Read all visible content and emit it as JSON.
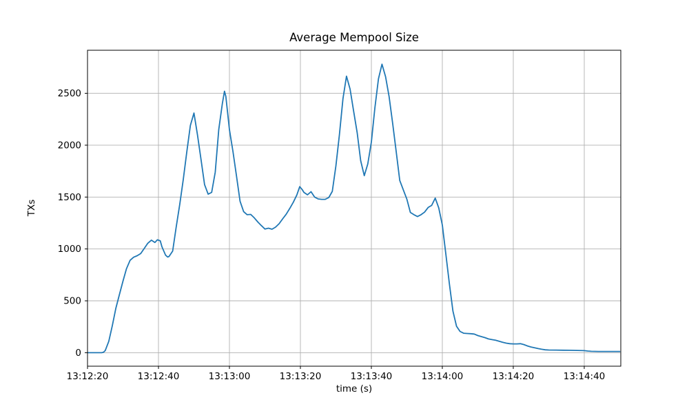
{
  "chart_data": {
    "type": "line",
    "title": "Average Mempool Size",
    "xlabel": "time (s)",
    "ylabel": "TXs",
    "grid": true,
    "legend": "none",
    "line_color": "#1f77b4",
    "grid_color": "#b0b0b0",
    "spine_color": "#000000",
    "background_color": "#ffffff",
    "x_tick_labels": [
      "13:12:20",
      "13:12:40",
      "13:13:00",
      "13:13:20",
      "13:13:40",
      "13:14:00",
      "13:14:20",
      "13:14:40"
    ],
    "x_tick_offsets_s": [
      0,
      20,
      40,
      60,
      80,
      100,
      120,
      140
    ],
    "y_ticks": [
      0,
      500,
      1000,
      1500,
      2000,
      2500
    ],
    "xlim_s": [
      0,
      150.3
    ],
    "ylim": [
      -130,
      2915
    ],
    "series": [
      {
        "name": "Average Mempool Size",
        "x_base_time": "13:12:20",
        "points": [
          [
            0,
            0
          ],
          [
            2,
            0
          ],
          [
            4,
            0
          ],
          [
            4.5,
            5
          ],
          [
            5,
            20
          ],
          [
            6,
            110
          ],
          [
            7,
            260
          ],
          [
            8,
            430
          ],
          [
            9,
            560
          ],
          [
            10,
            690
          ],
          [
            11,
            810
          ],
          [
            12,
            890
          ],
          [
            13,
            920
          ],
          [
            14,
            935
          ],
          [
            15,
            955
          ],
          [
            16,
            1005
          ],
          [
            17,
            1055
          ],
          [
            18,
            1085
          ],
          [
            19,
            1062
          ],
          [
            19.7,
            1088
          ],
          [
            20.5,
            1078
          ],
          [
            21,
            1020
          ],
          [
            22,
            940
          ],
          [
            22.6,
            922
          ],
          [
            23,
            928
          ],
          [
            24,
            980
          ],
          [
            25,
            1210
          ],
          [
            26,
            1430
          ],
          [
            27,
            1670
          ],
          [
            28,
            1940
          ],
          [
            29,
            2190
          ],
          [
            30,
            2310
          ],
          [
            31,
            2100
          ],
          [
            32,
            1860
          ],
          [
            33,
            1620
          ],
          [
            34,
            1528
          ],
          [
            35,
            1545
          ],
          [
            36,
            1740
          ],
          [
            37,
            2150
          ],
          [
            38,
            2400
          ],
          [
            38.6,
            2520
          ],
          [
            39,
            2470
          ],
          [
            40,
            2150
          ],
          [
            41,
            1940
          ],
          [
            42,
            1700
          ],
          [
            43,
            1460
          ],
          [
            44,
            1360
          ],
          [
            45,
            1330
          ],
          [
            46,
            1333
          ],
          [
            47,
            1300
          ],
          [
            48,
            1260
          ],
          [
            49,
            1225
          ],
          [
            50,
            1192
          ],
          [
            51,
            1200
          ],
          [
            52,
            1190
          ],
          [
            53,
            1210
          ],
          [
            54,
            1243
          ],
          [
            55,
            1290
          ],
          [
            56,
            1335
          ],
          [
            57,
            1390
          ],
          [
            58,
            1450
          ],
          [
            59,
            1520
          ],
          [
            59.8,
            1600
          ],
          [
            60.5,
            1572
          ],
          [
            61,
            1545
          ],
          [
            62,
            1522
          ],
          [
            63,
            1552
          ],
          [
            64,
            1500
          ],
          [
            65,
            1482
          ],
          [
            66,
            1478
          ],
          [
            67,
            1478
          ],
          [
            68,
            1495
          ],
          [
            69,
            1555
          ],
          [
            70,
            1800
          ],
          [
            71,
            2100
          ],
          [
            72,
            2450
          ],
          [
            73,
            2665
          ],
          [
            74,
            2540
          ],
          [
            75,
            2330
          ],
          [
            76,
            2120
          ],
          [
            77,
            1850
          ],
          [
            78,
            1706
          ],
          [
            79,
            1820
          ],
          [
            80,
            2030
          ],
          [
            81,
            2360
          ],
          [
            82,
            2640
          ],
          [
            83,
            2780
          ],
          [
            84,
            2660
          ],
          [
            85,
            2470
          ],
          [
            86,
            2210
          ],
          [
            87,
            1940
          ],
          [
            88,
            1660
          ],
          [
            89,
            1570
          ],
          [
            90,
            1480
          ],
          [
            91,
            1352
          ],
          [
            92,
            1330
          ],
          [
            93,
            1312
          ],
          [
            94,
            1330
          ],
          [
            95,
            1355
          ],
          [
            96,
            1400
          ],
          [
            97,
            1420
          ],
          [
            98,
            1490
          ],
          [
            99,
            1395
          ],
          [
            100,
            1230
          ],
          [
            101,
            950
          ],
          [
            102,
            660
          ],
          [
            103,
            400
          ],
          [
            104,
            255
          ],
          [
            105,
            205
          ],
          [
            106,
            188
          ],
          [
            107,
            185
          ],
          [
            108,
            183
          ],
          [
            109,
            180
          ],
          [
            110,
            165
          ],
          [
            111,
            155
          ],
          [
            112,
            145
          ],
          [
            113,
            133
          ],
          [
            114,
            126
          ],
          [
            115,
            120
          ],
          [
            116,
            110
          ],
          [
            117,
            100
          ],
          [
            118,
            92
          ],
          [
            119,
            87
          ],
          [
            120,
            85
          ],
          [
            121,
            85
          ],
          [
            122,
            87
          ],
          [
            123,
            78
          ],
          [
            124,
            65
          ],
          [
            125,
            55
          ],
          [
            126,
            48
          ],
          [
            127,
            40
          ],
          [
            128,
            33
          ],
          [
            129,
            28
          ],
          [
            130,
            26
          ],
          [
            132,
            25
          ],
          [
            134,
            24
          ],
          [
            136,
            23
          ],
          [
            138,
            22
          ],
          [
            140,
            20
          ],
          [
            141,
            16
          ],
          [
            142,
            13
          ],
          [
            144,
            12
          ],
          [
            146,
            12
          ],
          [
            148,
            12
          ],
          [
            150,
            12
          ]
        ]
      }
    ]
  }
}
